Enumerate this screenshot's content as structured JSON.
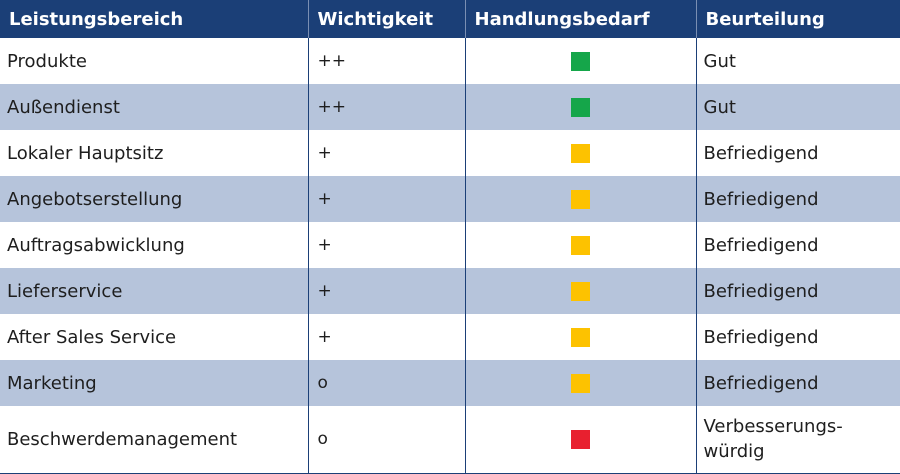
{
  "table": {
    "headers": [
      "Leistungsbereich",
      "Wichtigkeit",
      "Handlungsbedarf",
      "Beurteilung"
    ],
    "rows": [
      {
        "area": "Produkte",
        "importance": "++",
        "status": "green",
        "rating": "Gut"
      },
      {
        "area": "Außendienst",
        "importance": "++",
        "status": "green",
        "rating": "Gut"
      },
      {
        "area": "Lokaler Hauptsitz",
        "importance": "+",
        "status": "yellow",
        "rating": "Befriedigend"
      },
      {
        "area": "Angebotserstellung",
        "importance": "+",
        "status": "yellow",
        "rating": "Befriedigend"
      },
      {
        "area": "Auftragsabwicklung",
        "importance": "+",
        "status": "yellow",
        "rating": "Befriedigend"
      },
      {
        "area": "Lieferservice",
        "importance": "+",
        "status": "yellow",
        "rating": "Befriedigend"
      },
      {
        "area": "After Sales Service",
        "importance": "+",
        "status": "yellow",
        "rating": "Befriedigend"
      },
      {
        "area": "Marketing",
        "importance": "o",
        "status": "yellow",
        "rating": "Befriedigend"
      },
      {
        "area": "Beschwerdemanagement",
        "importance": "o",
        "status": "red",
        "rating": "Verbesserungs-\nwürdig"
      }
    ]
  },
  "colors": {
    "header_bg": "#1b3f77",
    "row_alt_bg": "#b6c4db",
    "green": "#15a64a",
    "yellow": "#fdc200",
    "red": "#e8202f"
  }
}
